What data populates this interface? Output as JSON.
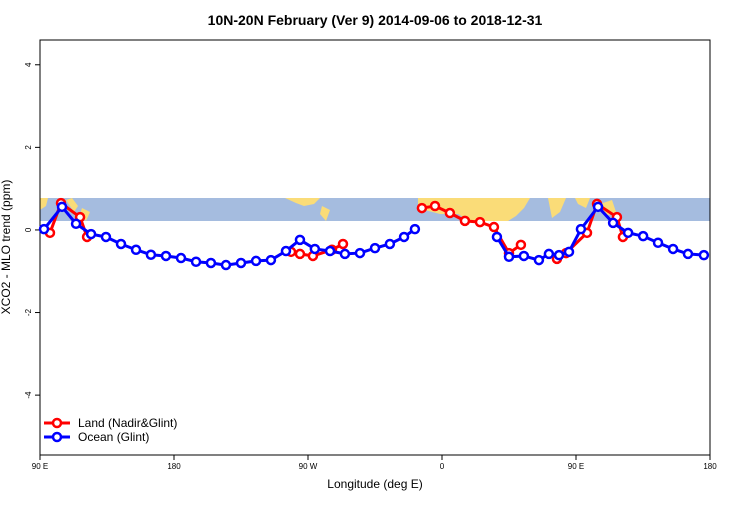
{
  "chart_data": {
    "type": "line",
    "title": "10N-20N February (Ver 9)   2014-09-06 to 2018-12-31",
    "x_label": "Longitude (deg E)",
    "y_label": "XCO2 - MLO trend (ppm)",
    "xlim": [
      90,
      540
    ],
    "ylim": [
      -5.45,
      4.6
    ],
    "xticks": [
      {
        "value": 90,
        "label": "90 E"
      },
      180,
      {
        "value": 270,
        "label": "90 W"
      },
      {
        "value": 360,
        "label": "0"
      },
      {
        "value": 450,
        "label": "90 E"
      },
      {
        "value": 540,
        "label": "180"
      }
    ],
    "yticks": [
      -4,
      -2,
      0,
      2,
      4
    ],
    "legend": "bottom-left",
    "series": [
      {
        "name": "Land (Nadir&Glint)",
        "color": "#ff0000",
        "x": [
          96.7,
          104.1,
          116.9,
          121.6,
          null,
          258.6,
          264.6,
          273.3,
          286.1,
          293.5,
          null,
          346.5,
          355.3,
          365.3,
          375.4,
          385.5,
          394.9,
          405,
          413,
          null,
          437.2,
          443.3,
          457.4,
          464.1,
          477.5,
          481.5
        ],
        "values": [
          -0.07,
          0.65,
          0.31,
          -0.17,
          null,
          -0.53,
          -0.58,
          -0.63,
          -0.48,
          -0.34,
          null,
          0.53,
          0.58,
          0.41,
          0.22,
          0.19,
          0.07,
          -0.56,
          -0.36,
          null,
          -0.7,
          -0.56,
          -0.07,
          0.63,
          0.31,
          -0.17
        ]
      },
      {
        "name": "Ocean (Glint)",
        "color": "#0000ff",
        "x": [
          92.7,
          104.8,
          114.2,
          124.3,
          134.3,
          144.4,
          154.5,
          164.5,
          174.6,
          184.7,
          194.8,
          204.8,
          214.9,
          225,
          235.1,
          245.1,
          255.2,
          264.6,
          274.6,
          284.8,
          294.8,
          304.9,
          315,
          325,
          334.5,
          341.8,
          null,
          396.9,
          405,
          415,
          425.1,
          431.8,
          438.6,
          445.3,
          453.3,
          464.8,
          474.9,
          485,
          495.1,
          505.1,
          515.2,
          525.2,
          535.9
        ],
        "values": [
          0.02,
          0.56,
          0.15,
          -0.1,
          -0.17,
          -0.34,
          -0.48,
          -0.6,
          -0.63,
          -0.68,
          -0.77,
          -0.8,
          -0.85,
          -0.8,
          -0.75,
          -0.73,
          -0.51,
          -0.24,
          -0.46,
          -0.51,
          -0.58,
          -0.56,
          -0.44,
          -0.34,
          -0.17,
          0.02,
          null,
          -0.17,
          -0.65,
          -0.63,
          -0.73,
          -0.58,
          -0.61,
          -0.53,
          0.02,
          0.56,
          0.17,
          -0.07,
          -0.15,
          -0.31,
          -0.46,
          -0.58,
          -0.61
        ]
      }
    ]
  }
}
